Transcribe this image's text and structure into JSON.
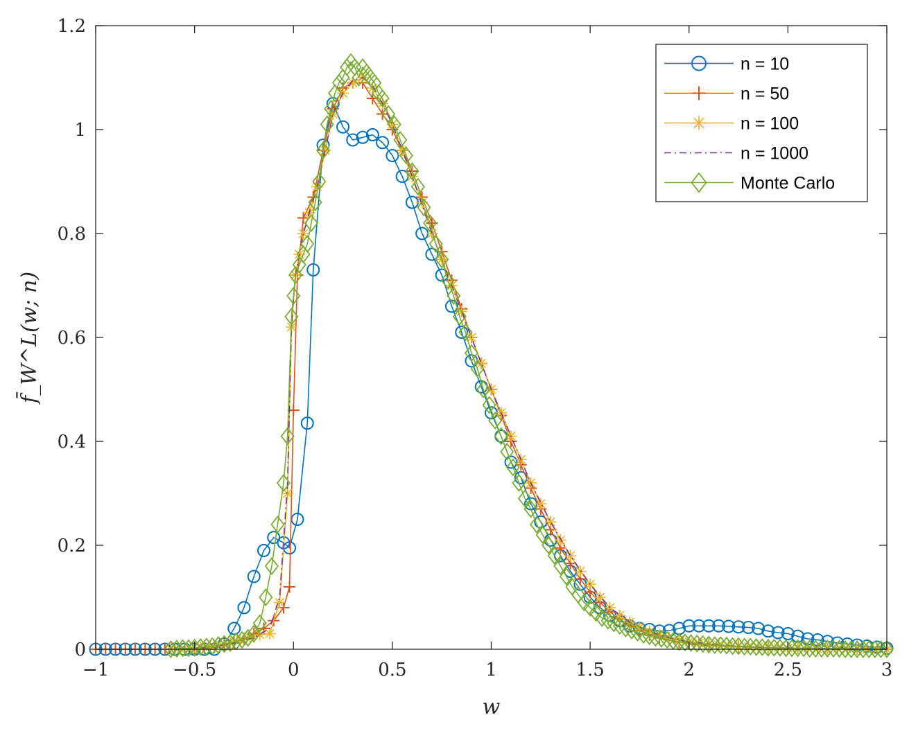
{
  "chart_data": {
    "type": "line",
    "title": "",
    "xlabel": "w",
    "ylabel": "f̄_W^L(w; n)",
    "xlim": [
      -1,
      3
    ],
    "ylim": [
      0,
      1.2
    ],
    "xticks": [
      -1,
      -0.5,
      0,
      0.5,
      1,
      1.5,
      2,
      2.5,
      3
    ],
    "xtick_labels": [
      "−1",
      "−0.5",
      "0",
      "0.5",
      "1",
      "1.5",
      "2",
      "2.5",
      "3"
    ],
    "yticks": [
      0,
      0.2,
      0.4,
      0.6,
      0.8,
      1,
      1.2
    ],
    "ytick_labels": [
      "0",
      "0.2",
      "0.4",
      "0.6",
      "0.8",
      "1",
      "1.2"
    ],
    "grid": false,
    "legend_position": "top-right",
    "series": [
      {
        "name": "n = 10",
        "color": "#0072BD",
        "marker": "circle",
        "line": "solid",
        "x": [
          -1.0,
          -0.95,
          -0.9,
          -0.85,
          -0.8,
          -0.75,
          -0.7,
          -0.65,
          -0.6,
          -0.55,
          -0.5,
          -0.45,
          -0.4,
          -0.35,
          -0.3,
          -0.25,
          -0.2,
          -0.15,
          -0.1,
          -0.05,
          -0.02,
          0.02,
          0.07,
          0.1,
          0.15,
          0.2,
          0.25,
          0.3,
          0.35,
          0.4,
          0.45,
          0.5,
          0.55,
          0.6,
          0.65,
          0.7,
          0.75,
          0.8,
          0.85,
          0.9,
          0.95,
          1.0,
          1.05,
          1.1,
          1.15,
          1.2,
          1.25,
          1.3,
          1.35,
          1.4,
          1.45,
          1.5,
          1.55,
          1.6,
          1.65,
          1.7,
          1.75,
          1.8,
          1.85,
          1.9,
          1.95,
          2.0,
          2.05,
          2.1,
          2.15,
          2.2,
          2.25,
          2.3,
          2.35,
          2.4,
          2.45,
          2.5,
          2.55,
          2.6,
          2.65,
          2.7,
          2.75,
          2.8,
          2.85,
          2.9,
          2.95,
          3.0
        ],
        "y": [
          0.0,
          0.0,
          0.0,
          0.0,
          0.0,
          0.0,
          0.0,
          0.0,
          0.0,
          0.0,
          0.0,
          0.0,
          0.0,
          0.01,
          0.04,
          0.08,
          0.14,
          0.19,
          0.215,
          0.205,
          0.195,
          0.25,
          0.435,
          0.73,
          0.97,
          1.05,
          1.005,
          0.98,
          0.985,
          0.99,
          0.975,
          0.95,
          0.91,
          0.86,
          0.8,
          0.76,
          0.72,
          0.66,
          0.61,
          0.555,
          0.505,
          0.455,
          0.41,
          0.36,
          0.33,
          0.28,
          0.245,
          0.21,
          0.18,
          0.15,
          0.125,
          0.1,
          0.08,
          0.065,
          0.055,
          0.045,
          0.04,
          0.038,
          0.035,
          0.036,
          0.04,
          0.045,
          0.045,
          0.045,
          0.045,
          0.044,
          0.043,
          0.042,
          0.04,
          0.035,
          0.032,
          0.03,
          0.025,
          0.02,
          0.018,
          0.015,
          0.012,
          0.01,
          0.008,
          0.006,
          0.004,
          0.002
        ]
      },
      {
        "name": "n = 50",
        "color": "#D95319",
        "marker": "plus",
        "line": "solid",
        "x": [
          -1.0,
          -0.95,
          -0.9,
          -0.85,
          -0.8,
          -0.75,
          -0.7,
          -0.65,
          -0.6,
          -0.55,
          -0.5,
          -0.45,
          -0.4,
          -0.35,
          -0.3,
          -0.25,
          -0.2,
          -0.15,
          -0.1,
          -0.05,
          -0.02,
          0.0,
          0.02,
          0.05,
          0.1,
          0.15,
          0.2,
          0.25,
          0.3,
          0.35,
          0.4,
          0.45,
          0.5,
          0.55,
          0.6,
          0.65,
          0.7,
          0.75,
          0.8,
          0.85,
          0.9,
          0.95,
          1.0,
          1.05,
          1.1,
          1.15,
          1.2,
          1.25,
          1.3,
          1.35,
          1.4,
          1.45,
          1.5,
          1.55,
          1.6,
          1.65,
          1.7,
          1.75,
          1.8,
          1.85,
          1.9,
          1.95,
          2.0,
          2.05,
          2.1,
          2.15,
          2.2,
          2.25,
          2.3,
          2.35,
          2.4,
          2.45,
          2.5,
          2.55,
          2.6,
          2.65,
          2.7,
          2.75,
          2.8,
          2.85,
          2.9,
          2.95,
          3.0
        ],
        "y": [
          0.0,
          0.0,
          0.0,
          0.0,
          0.0,
          0.0,
          0.0,
          0.0,
          0.0,
          0.0,
          0.0,
          0.002,
          0.004,
          0.008,
          0.012,
          0.02,
          0.03,
          0.04,
          0.055,
          0.08,
          0.12,
          0.46,
          0.72,
          0.83,
          0.87,
          0.96,
          1.04,
          1.08,
          1.09,
          1.09,
          1.06,
          1.03,
          1.0,
          0.96,
          0.92,
          0.87,
          0.82,
          0.765,
          0.71,
          0.655,
          0.6,
          0.55,
          0.5,
          0.45,
          0.4,
          0.355,
          0.31,
          0.27,
          0.23,
          0.195,
          0.165,
          0.135,
          0.11,
          0.09,
          0.072,
          0.058,
          0.046,
          0.036,
          0.028,
          0.022,
          0.018,
          0.014,
          0.011,
          0.009,
          0.008,
          0.007,
          0.006,
          0.005,
          0.004,
          0.004,
          0.003,
          0.003,
          0.002,
          0.002,
          0.002,
          0.001,
          0.001,
          0.001,
          0.001,
          0.0,
          0.0,
          0.0,
          0.0
        ]
      },
      {
        "name": "n = 100",
        "color": "#EDB120",
        "marker": "star",
        "line": "solid",
        "x": [
          -0.62,
          -0.57,
          -0.52,
          -0.47,
          -0.42,
          -0.37,
          -0.32,
          -0.27,
          -0.22,
          -0.17,
          -0.12,
          -0.07,
          -0.03,
          -0.01,
          0.01,
          0.03,
          0.05,
          0.08,
          0.12,
          0.16,
          0.2,
          0.25,
          0.3,
          0.35,
          0.4,
          0.45,
          0.5,
          0.55,
          0.6,
          0.65,
          0.7,
          0.75,
          0.8,
          0.85,
          0.9,
          0.95,
          1.0,
          1.05,
          1.1,
          1.15,
          1.2,
          1.25,
          1.3,
          1.35,
          1.4,
          1.45,
          1.5,
          1.55,
          1.6,
          1.65,
          1.7,
          1.75,
          1.8,
          1.85,
          1.9,
          1.95,
          2.0,
          2.05,
          2.1,
          2.15,
          2.2,
          2.25,
          2.3,
          2.35,
          2.4,
          2.45,
          2.5,
          2.55,
          2.6,
          2.65,
          2.7,
          2.75,
          2.8,
          2.85,
          2.9,
          2.95,
          3.0
        ],
        "y": [
          0.0,
          0.0,
          0.002,
          0.003,
          0.005,
          0.008,
          0.012,
          0.018,
          0.022,
          0.028,
          0.03,
          0.09,
          0.3,
          0.62,
          0.72,
          0.76,
          0.8,
          0.84,
          0.89,
          0.96,
          1.03,
          1.07,
          1.09,
          1.1,
          1.08,
          1.05,
          1.01,
          0.96,
          0.91,
          0.86,
          0.8,
          0.75,
          0.7,
          0.65,
          0.6,
          0.55,
          0.5,
          0.455,
          0.41,
          0.365,
          0.32,
          0.28,
          0.245,
          0.21,
          0.18,
          0.15,
          0.125,
          0.1,
          0.08,
          0.065,
          0.052,
          0.042,
          0.034,
          0.028,
          0.022,
          0.018,
          0.014,
          0.012,
          0.01,
          0.008,
          0.007,
          0.006,
          0.005,
          0.004,
          0.003,
          0.003,
          0.002,
          0.002,
          0.002,
          0.001,
          0.001,
          0.001,
          0.001,
          0.0,
          0.0,
          0.0,
          0.0
        ]
      },
      {
        "name": "n = 1000",
        "color": "#7E2F8E",
        "marker": "none",
        "line": "dashdot",
        "x": [
          -0.62,
          -0.5,
          -0.4,
          -0.3,
          -0.2,
          -0.12,
          -0.07,
          -0.03,
          -0.01,
          0.01,
          0.03,
          0.05,
          0.08,
          0.12,
          0.16,
          0.2,
          0.25,
          0.3,
          0.35,
          0.4,
          0.45,
          0.5,
          0.6,
          0.7,
          0.8,
          0.9,
          1.0,
          1.1,
          1.2,
          1.3,
          1.4,
          1.5,
          1.6,
          1.7,
          1.8,
          1.9,
          2.0,
          2.2,
          2.4,
          2.6,
          2.8,
          3.0
        ],
        "y": [
          0.0,
          0.002,
          0.005,
          0.012,
          0.022,
          0.04,
          0.1,
          0.32,
          0.62,
          0.72,
          0.76,
          0.8,
          0.84,
          0.89,
          0.96,
          1.03,
          1.07,
          1.095,
          1.1,
          1.085,
          1.05,
          1.01,
          0.91,
          0.8,
          0.7,
          0.6,
          0.5,
          0.41,
          0.32,
          0.245,
          0.18,
          0.125,
          0.08,
          0.052,
          0.034,
          0.022,
          0.014,
          0.007,
          0.003,
          0.002,
          0.001,
          0.0
        ]
      },
      {
        "name": "Monte Carlo",
        "color": "#77AC30",
        "marker": "diamond",
        "line": "solid",
        "x": [
          -0.62,
          -0.59,
          -0.56,
          -0.53,
          -0.5,
          -0.47,
          -0.44,
          -0.41,
          -0.38,
          -0.35,
          -0.32,
          -0.29,
          -0.26,
          -0.23,
          -0.2,
          -0.17,
          -0.14,
          -0.11,
          -0.08,
          -0.05,
          -0.03,
          -0.01,
          0.0,
          0.01,
          0.03,
          0.05,
          0.07,
          0.09,
          0.11,
          0.13,
          0.15,
          0.17,
          0.19,
          0.21,
          0.23,
          0.25,
          0.27,
          0.29,
          0.31,
          0.33,
          0.35,
          0.37,
          0.39,
          0.41,
          0.43,
          0.45,
          0.48,
          0.51,
          0.54,
          0.57,
          0.6,
          0.63,
          0.66,
          0.69,
          0.72,
          0.75,
          0.78,
          0.81,
          0.84,
          0.87,
          0.9,
          0.93,
          0.96,
          0.99,
          1.02,
          1.05,
          1.08,
          1.11,
          1.14,
          1.17,
          1.2,
          1.23,
          1.26,
          1.29,
          1.32,
          1.35,
          1.38,
          1.41,
          1.44,
          1.47,
          1.5,
          1.53,
          1.56,
          1.59,
          1.62,
          1.65,
          1.68,
          1.71,
          1.74,
          1.77,
          1.8,
          1.83,
          1.86,
          1.89,
          1.92,
          1.95,
          1.98,
          2.01,
          2.04,
          2.07,
          2.1,
          2.13,
          2.16,
          2.19,
          2.22,
          2.25,
          2.28,
          2.31,
          2.34,
          2.37,
          2.4,
          2.43,
          2.46,
          2.49,
          2.52,
          2.55,
          2.58,
          2.61,
          2.64,
          2.67,
          2.7,
          2.73,
          2.76,
          2.79,
          2.82,
          2.85,
          2.88,
          2.91,
          2.94,
          2.97,
          3.0
        ],
        "y": [
          0.0,
          0.001,
          0.002,
          0.002,
          0.003,
          0.004,
          0.005,
          0.006,
          0.008,
          0.01,
          0.012,
          0.015,
          0.018,
          0.022,
          0.03,
          0.05,
          0.1,
          0.16,
          0.24,
          0.32,
          0.41,
          0.64,
          0.68,
          0.72,
          0.74,
          0.76,
          0.78,
          0.82,
          0.86,
          0.9,
          0.96,
          1.01,
          1.04,
          1.07,
          1.09,
          1.1,
          1.12,
          1.13,
          1.12,
          1.1,
          1.12,
          1.11,
          1.1,
          1.09,
          1.07,
          1.06,
          1.03,
          1.01,
          0.98,
          0.95,
          0.92,
          0.89,
          0.85,
          0.82,
          0.78,
          0.75,
          0.71,
          0.68,
          0.64,
          0.61,
          0.57,
          0.54,
          0.5,
          0.47,
          0.44,
          0.41,
          0.38,
          0.35,
          0.32,
          0.29,
          0.27,
          0.24,
          0.22,
          0.2,
          0.18,
          0.16,
          0.14,
          0.12,
          0.105,
          0.09,
          0.08,
          0.07,
          0.06,
          0.055,
          0.05,
          0.045,
          0.04,
          0.036,
          0.032,
          0.028,
          0.025,
          0.022,
          0.02,
          0.018,
          0.016,
          0.014,
          0.013,
          0.012,
          0.011,
          0.01,
          0.009,
          0.008,
          0.008,
          0.007,
          0.006,
          0.006,
          0.005,
          0.005,
          0.004,
          0.004,
          0.003,
          0.003,
          0.003,
          0.002,
          0.002,
          0.002,
          0.002,
          0.001,
          0.001,
          0.001,
          0.001,
          0.001,
          0.001,
          0.0,
          0.0,
          0.0,
          0.0,
          0.0,
          0.0,
          0.0,
          0.0
        ]
      }
    ]
  }
}
